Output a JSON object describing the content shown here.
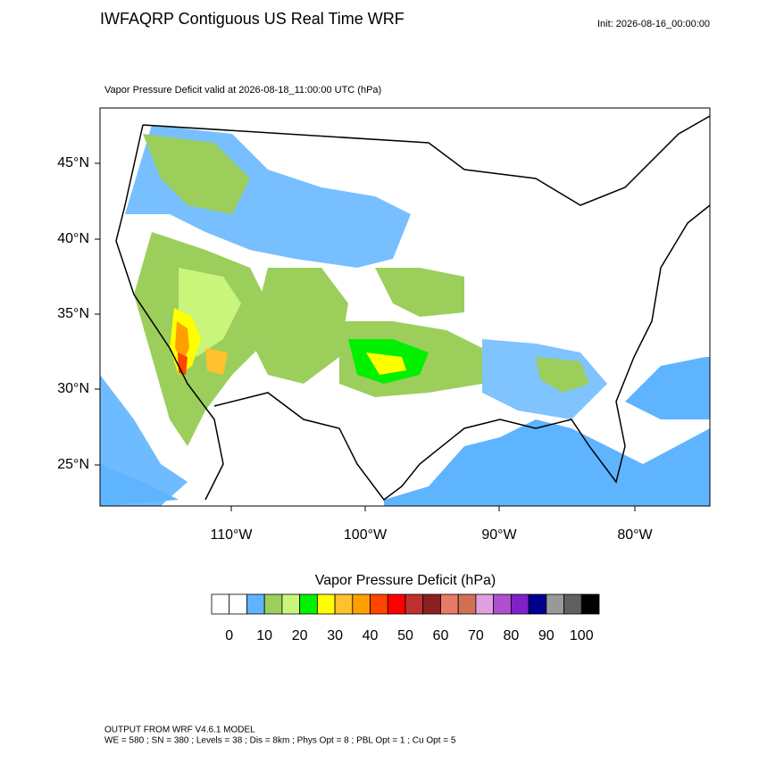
{
  "header": {
    "title": "IWFAQRP Contiguous US Real Time WRF",
    "init": "Init: 2026-08-16_00:00:00"
  },
  "map": {
    "subtitle": "Vapor Pressure Deficit valid at 2026-08-18_11:00:00 UTC   (hPa)",
    "lat_labels": [
      "45°N",
      "40°N",
      "35°N",
      "30°N",
      "25°N"
    ],
    "lon_labels": [
      "110°W",
      "100°W",
      "90°W",
      "80°W"
    ]
  },
  "colorbar": {
    "title": "Vapor Pressure Deficit  (hPa)",
    "colors": [
      "#ffffff",
      "#ffffff",
      "#5fb4ff",
      "#9cce5c",
      "#c8f57a",
      "#00f000",
      "#ffff00",
      "#ffc22e",
      "#ffa000",
      "#ff4500",
      "#ff0000",
      "#c0302e",
      "#8b2020",
      "#e87a68",
      "#d07055",
      "#e0a0e0",
      "#b050d0",
      "#8020c8",
      "#000090",
      "#999999",
      "#606060",
      "#000000"
    ],
    "labels": [
      "0",
      "10",
      "20",
      "30",
      "40",
      "50",
      "60",
      "70",
      "80",
      "90",
      "100"
    ]
  },
  "footer": {
    "line1": "OUTPUT FROM WRF V4.6.1 MODEL",
    "line2": "WE = 580 ; SN = 380 ; Levels = 38 ; Dis = 8km ; Phys Opt = 8 ; PBL Opt = 1 ; Cu Opt = 5"
  }
}
